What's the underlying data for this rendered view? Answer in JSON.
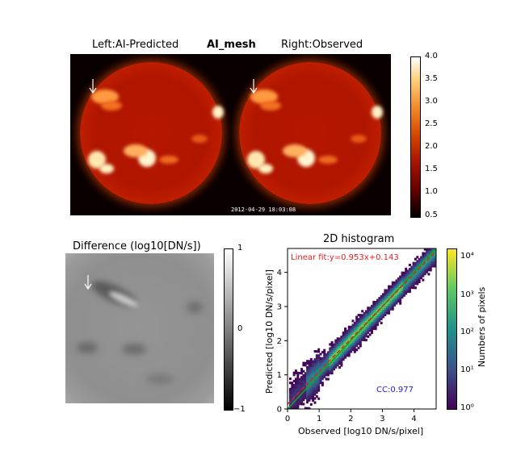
{
  "top_figure": {
    "left_title": "Left:AI-Predicted",
    "center_title": "AI_mesh",
    "right_title": "Right:Observed",
    "timestamp": "2012-04-29 18:03:08",
    "colorbar_ticks": [
      "4.0",
      "3.5",
      "3.0",
      "2.5",
      "2.0",
      "1.5",
      "1.0",
      "0.5"
    ],
    "colormap": [
      "#ffffff",
      "#ffd07a",
      "#f08a28",
      "#d24200",
      "#a51400",
      "#600000",
      "#000000"
    ]
  },
  "difference_panel": {
    "title": "Difference (log10[DN/s])",
    "colorbar_ticks": [
      "1",
      "0",
      "−1"
    ]
  },
  "chart_data": {
    "type": "heatmap",
    "title": "2D histogram",
    "xlabel": "Observed [log10 DN/s/pixel]",
    "ylabel": "Predicted [log10 DN/s/pixel]",
    "xlim": [
      0,
      4.7
    ],
    "ylim": [
      0,
      4.7
    ],
    "x_ticks": [
      "0",
      "1",
      "2",
      "3",
      "4"
    ],
    "y_ticks": [
      "0",
      "1",
      "2",
      "3",
      "4"
    ],
    "fit_label": "Linear fit:y=0.953x+0.143",
    "fit": {
      "slope": 0.953,
      "intercept": 0.143,
      "color": "#e02020"
    },
    "identity_line_color": "#1aa01a",
    "cc_label": "CC:0.977",
    "colorbar_label": "Numbers of pixels",
    "colorbar_ticks": [
      "10⁴",
      "10³",
      "10²",
      "10¹",
      "10⁰"
    ],
    "colormap": [
      "#fde725",
      "#5ec962",
      "#21918c",
      "#3b528b",
      "#440154"
    ]
  }
}
